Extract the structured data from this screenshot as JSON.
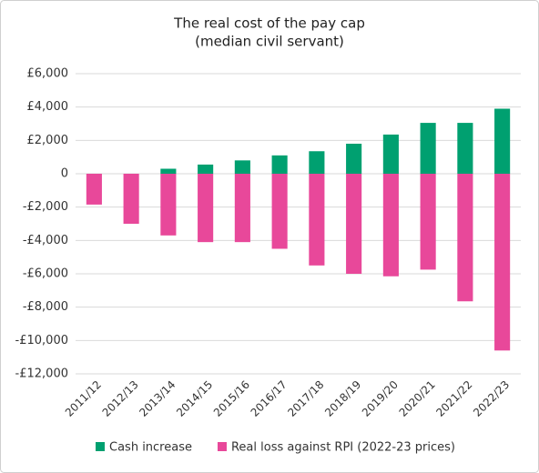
{
  "chart_data": {
    "type": "bar",
    "title": "The real cost of the pay cap",
    "subtitle": "(median civil servant)",
    "categories": [
      "2011/12",
      "2012/13",
      "2013/14",
      "2014/15",
      "2015/16",
      "2016/17",
      "2017/18",
      "2018/19",
      "2019/20",
      "2020/21",
      "2021/22",
      "2022/23"
    ],
    "series": [
      {
        "name": "Cash increase",
        "color": "#00a070",
        "values": [
          0,
          0,
          300,
          550,
          800,
          1100,
          1350,
          1800,
          2350,
          3050,
          3050,
          3900
        ]
      },
      {
        "name": "Real loss against RPI (2022-23 prices)",
        "color": "#e8489a",
        "values": [
          -1850,
          -3000,
          -3700,
          -4100,
          -4100,
          -4500,
          -5500,
          -6000,
          -6150,
          -5750,
          -7650,
          -10600
        ]
      }
    ],
    "ylim": [
      -12000,
      6000
    ],
    "yticks": [
      {
        "value": -12000,
        "label": "-£12,000"
      },
      {
        "value": -10000,
        "label": "-£10,000"
      },
      {
        "value": -8000,
        "label": "-£8,000"
      },
      {
        "value": -6000,
        "label": "-£6,000"
      },
      {
        "value": -4000,
        "label": "-£4,000"
      },
      {
        "value": -2000,
        "label": "-£2,000"
      },
      0,
      {
        "value": 2000,
        "label": "£2,000"
      },
      {
        "value": 4000,
        "label": "£4,000"
      },
      {
        "value": 6000,
        "label": "£6,000"
      }
    ],
    "grid": true,
    "legend": "bottom"
  }
}
